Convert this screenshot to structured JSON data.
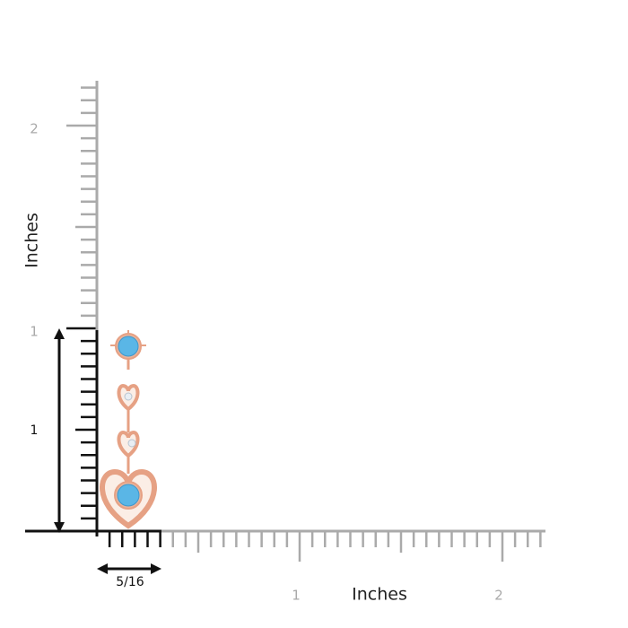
{
  "rulers": {
    "vertical": {
      "label": "Inches",
      "ticks": [
        "2",
        "1"
      ]
    },
    "horizontal": {
      "label": "Inches",
      "ticks": [
        "1",
        "2"
      ]
    }
  },
  "dimensions": {
    "height": "1",
    "width": "5/16"
  }
}
